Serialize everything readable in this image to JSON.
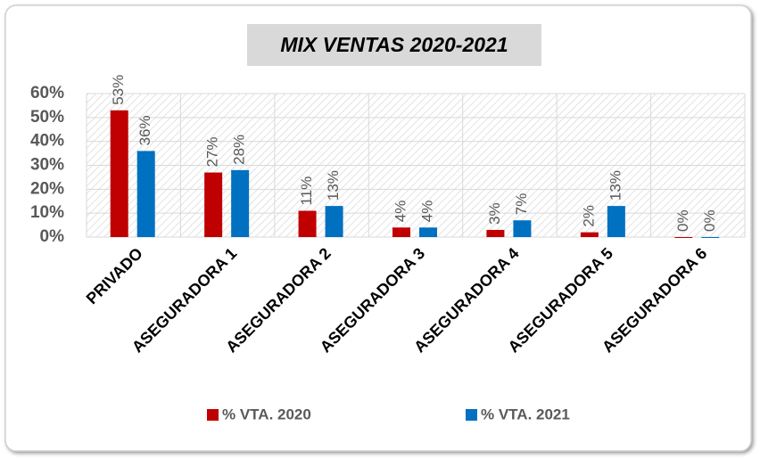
{
  "chart_data": {
    "type": "bar",
    "title": "MIX VENTAS 2020-2021",
    "categories": [
      "PRIVADO",
      "ASEGURADORA 1",
      "ASEGURADORA 2",
      "ASEGURADORA 3",
      "ASEGURADORA 4",
      "ASEGURADORA 5",
      "ASEGURADORA 6"
    ],
    "series": [
      {
        "name": "% VTA. 2020",
        "color": "#c00000",
        "values": [
          53,
          27,
          11,
          4,
          3,
          2,
          0
        ],
        "value_labels": [
          "53%",
          "27%",
          "11%",
          "4%",
          "3%",
          "2%",
          "0%"
        ]
      },
      {
        "name": "% VTA. 2021",
        "color": "#0070c0",
        "values": [
          36,
          28,
          13,
          4,
          7,
          13,
          0
        ],
        "value_labels": [
          "36%",
          "28%",
          "13%",
          "4%",
          "7%",
          "13%",
          "0%"
        ]
      }
    ],
    "ylim": [
      0,
      60
    ],
    "yticks": [
      {
        "value": 0,
        "label": "0%"
      },
      {
        "value": 10,
        "label": "10%"
      },
      {
        "value": 20,
        "label": "20%"
      },
      {
        "value": 30,
        "label": "30%"
      },
      {
        "value": 40,
        "label": "40%"
      },
      {
        "value": 50,
        "label": "50%"
      },
      {
        "value": 60,
        "label": "60%"
      }
    ],
    "grid": true,
    "legend": "bottom"
  }
}
